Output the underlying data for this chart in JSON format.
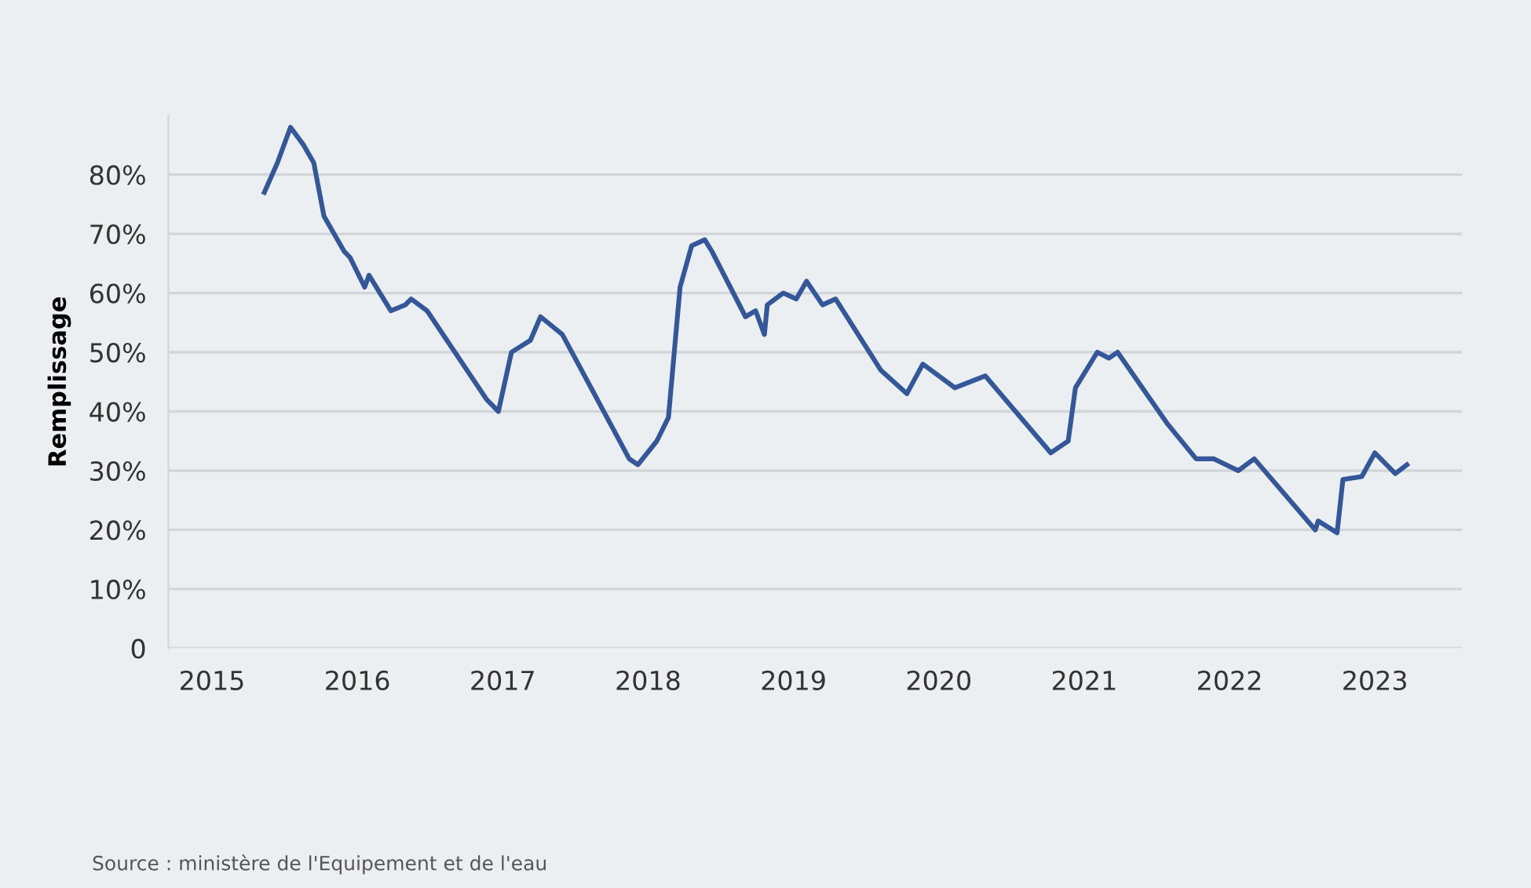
{
  "chart_data": {
    "type": "line",
    "ylabel": "Remplissage",
    "x": [
      2015.36,
      2015.45,
      2015.54,
      2015.63,
      2015.7,
      2015.77,
      2015.91,
      2015.95,
      2016.05,
      2016.08,
      2016.23,
      2016.33,
      2016.37,
      2016.48,
      2016.89,
      2016.97,
      2017.06,
      2017.19,
      2017.26,
      2017.41,
      2017.87,
      2017.93,
      2018.06,
      2018.14,
      2018.22,
      2018.3,
      2018.39,
      2018.44,
      2018.67,
      2018.74,
      2018.8,
      2018.82,
      2018.93,
      2019.02,
      2019.09,
      2019.2,
      2019.29,
      2019.6,
      2019.78,
      2019.89,
      2020.11,
      2020.32,
      2020.77,
      2020.89,
      2020.94,
      2021.09,
      2021.17,
      2021.23,
      2021.57,
      2021.77,
      2021.89,
      2022.06,
      2022.17,
      2022.59,
      2022.61,
      2022.74,
      2022.78,
      2022.91,
      2023.0,
      2023.14,
      2023.22
    ],
    "series": [
      {
        "color": "#34579a",
        "values": [
          77,
          82,
          88,
          85,
          82,
          73,
          67,
          66,
          61,
          63,
          57,
          58,
          59,
          57,
          42,
          40,
          50,
          52,
          56,
          53,
          32,
          31,
          35,
          39,
          61,
          68,
          69,
          67,
          56,
          57,
          53,
          58,
          60,
          59,
          62,
          58,
          59,
          47,
          43,
          48,
          44,
          46,
          33,
          35,
          44,
          50,
          49,
          50,
          38,
          32,
          32,
          30,
          32,
          20,
          21.5,
          19.5,
          28.5,
          29,
          33,
          29.5,
          31
        ]
      }
    ],
    "xlim": [
      2014.7,
      2023.6
    ],
    "xticks": [
      2015,
      2016,
      2017,
      2018,
      2019,
      2020,
      2021,
      2022,
      2023
    ],
    "ylim": [
      0,
      90
    ],
    "yticks": [
      0,
      {
        "value": 10,
        "label": "10%"
      },
      {
        "value": 20,
        "label": "20%"
      },
      {
        "value": 30,
        "label": "30%"
      },
      {
        "value": 40,
        "label": "40%"
      },
      {
        "value": 50,
        "label": "50%"
      },
      {
        "value": 60,
        "label": "60%"
      },
      {
        "value": 70,
        "label": "70%"
      },
      {
        "value": 80,
        "label": "80%"
      }
    ],
    "grid": "y",
    "marker": "none",
    "line_style": "solid",
    "annotations": [
      "Source : ministère de l'Equipement et de l'eau"
    ]
  }
}
